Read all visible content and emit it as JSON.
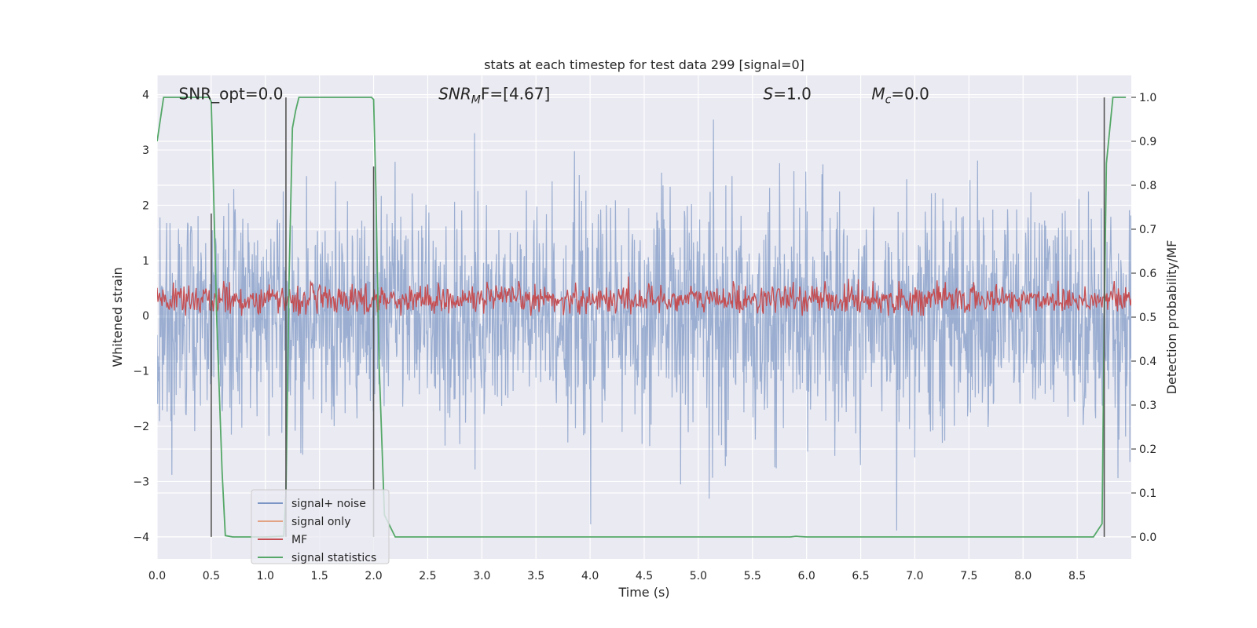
{
  "chart_data": {
    "type": "line",
    "title": "stats at each timestep for test data 299 [signal=0]",
    "xlabel": "Time (s)",
    "ylabel": "Whitened strain",
    "ylabel_right": "Detection probability/MF",
    "xlim": [
      0.0,
      9.0
    ],
    "ylim": [
      -4.4,
      4.35
    ],
    "ylim_right": [
      -0.05,
      1.05
    ],
    "x_ticks": [
      0.0,
      0.5,
      1.0,
      1.5,
      2.0,
      2.5,
      3.0,
      3.5,
      4.0,
      4.5,
      5.0,
      5.5,
      6.0,
      6.5,
      7.0,
      7.5,
      8.0,
      8.5
    ],
    "x_tick_labels": [
      "0.0",
      "0.5",
      "1.0",
      "1.5",
      "2.0",
      "2.5",
      "3.0",
      "3.5",
      "4.0",
      "4.5",
      "5.0",
      "5.5",
      "6.0",
      "6.5",
      "7.0",
      "7.5",
      "8.0",
      "8.5"
    ],
    "y_ticks": [
      -4,
      -3,
      -2,
      -1,
      0,
      1,
      2,
      3,
      4
    ],
    "y_tick_labels": [
      "−4",
      "−3",
      "−2",
      "−1",
      "0",
      "1",
      "2",
      "3",
      "4"
    ],
    "y_ticks_right": [
      0.0,
      0.1,
      0.2,
      0.3,
      0.4,
      0.5,
      0.6,
      0.7,
      0.8,
      0.9,
      1.0
    ],
    "y_tick_labels_right": [
      "0.0",
      "0.1",
      "0.2",
      "0.3",
      "0.4",
      "0.5",
      "0.6",
      "0.7",
      "0.8",
      "0.9",
      "1.0"
    ],
    "grid": true,
    "legend_position": "lower-left",
    "annotations": [
      {
        "text": "SNR_opt=0.0",
        "x": 0.2,
        "y": 4.0
      },
      {
        "text": "SNR",
        "sub": "M",
        "suffix": "F=[4.67]",
        "italic": true,
        "x": 2.6,
        "y": 4.0
      },
      {
        "text": "S",
        "suffix": "=1.0",
        "italic": true,
        "x": 5.6,
        "y": 4.0
      },
      {
        "text": "M",
        "sub": "c",
        "suffix": "=0.0",
        "italic": true,
        "x": 6.6,
        "y": 4.0
      }
    ],
    "vertical_markers": [
      {
        "x": 0.5,
        "y_from": -4.0,
        "y_to": 1.85
      },
      {
        "x": 1.19,
        "y_from": -4.0,
        "y_to": 3.95
      },
      {
        "x": 2.0,
        "y_from": -4.0,
        "y_to": 2.7
      },
      {
        "x": 8.75,
        "y_from": -4.0,
        "y_to": 3.95
      }
    ],
    "series": [
      {
        "name": "signal+ noise",
        "color": "#4c72b0",
        "axis": "left",
        "description": "noisy whitened strain over 0–9 s, spanning roughly -2.5 to 3.2 with spikes to -4.0 and 3.5",
        "noise_amplitude": 1.0,
        "range": [
          -4.0,
          3.55
        ],
        "samples": 2048
      },
      {
        "name": "signal only",
        "color": "#dd8452",
        "axis": "left",
        "values": []
      },
      {
        "name": "MF",
        "color": "#c44e52",
        "axis": "left",
        "range": [
          0.0,
          1.0
        ],
        "mean": 0.3,
        "samples": 1200
      },
      {
        "name": "signal statistics",
        "color": "#55a868",
        "axis": "right",
        "x": [
          0.0,
          0.06,
          0.1,
          0.48,
          0.5,
          0.52,
          0.55,
          0.6,
          0.63,
          0.7,
          1.0,
          1.17,
          1.19,
          1.22,
          1.25,
          1.28,
          1.31,
          1.33,
          1.35,
          1.98,
          2.0,
          2.02,
          2.05,
          2.1,
          2.2,
          2.5,
          5.0,
          5.85,
          5.9,
          6.0,
          8.0,
          8.65,
          8.73,
          8.75,
          8.77,
          8.83,
          8.95
        ],
        "y": [
          0.9,
          1.0,
          1.0,
          1.0,
          0.99,
          0.8,
          0.5,
          0.15,
          0.003,
          0.0,
          0.0,
          0.002,
          0.1,
          0.6,
          0.93,
          0.97,
          1.0,
          1.0,
          1.0,
          1.0,
          0.995,
          0.8,
          0.4,
          0.05,
          0.0,
          0.0,
          0.0,
          0.0,
          0.0015,
          0.0,
          0.0,
          0.0,
          0.03,
          0.5,
          0.85,
          1.0,
          1.0
        ]
      }
    ]
  }
}
